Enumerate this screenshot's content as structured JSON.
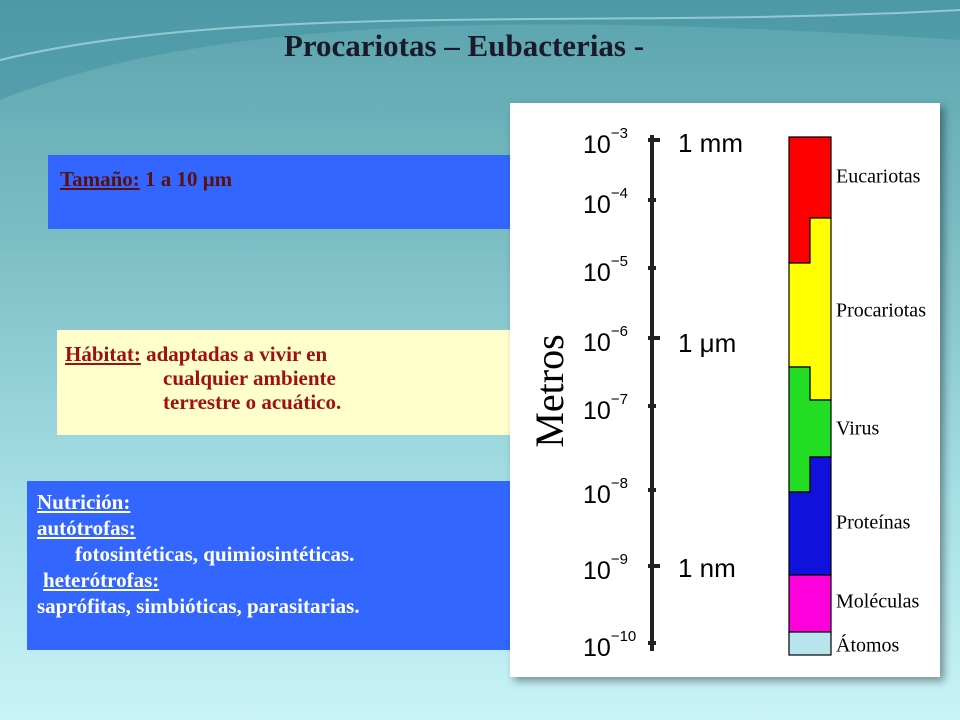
{
  "title": "Procariotas – Eubacterias -",
  "size_box": {
    "label": "Tamaño:",
    "text": "1 a 10 μm"
  },
  "habitat_box": {
    "label": "Hábitat:",
    "lines": [
      "adaptadas a vivir en",
      "cualquier ambiente",
      "terrestre o acuático."
    ]
  },
  "nutrition_box": {
    "heading": "Nutrición:",
    "autotrophs": "autótrofas:",
    "autotroph_types": "fotosintéticas, quimiosintéticas.",
    "heterotrophs": "heterótrofas:",
    "heterotroph_types": "saprófitas, simbióticas,  parasitarias."
  },
  "figure": {
    "axis_label": "Metros",
    "ticks": [
      {
        "base": "10",
        "exp": "−3"
      },
      {
        "base": "10",
        "exp": "−4"
      },
      {
        "base": "10",
        "exp": "−5"
      },
      {
        "base": "10",
        "exp": "−6"
      },
      {
        "base": "10",
        "exp": "−7"
      },
      {
        "base": "10",
        "exp": "−8"
      },
      {
        "base": "10",
        "exp": "−9"
      },
      {
        "base": "10",
        "exp": "−10"
      }
    ],
    "scale_labels": [
      "1 mm",
      "1 μm",
      "1 nm"
    ],
    "groups": [
      "Eucariotas",
      "Procariotas",
      "Virus",
      "Proteínas",
      "Moléculas",
      "Átomos"
    ]
  }
}
